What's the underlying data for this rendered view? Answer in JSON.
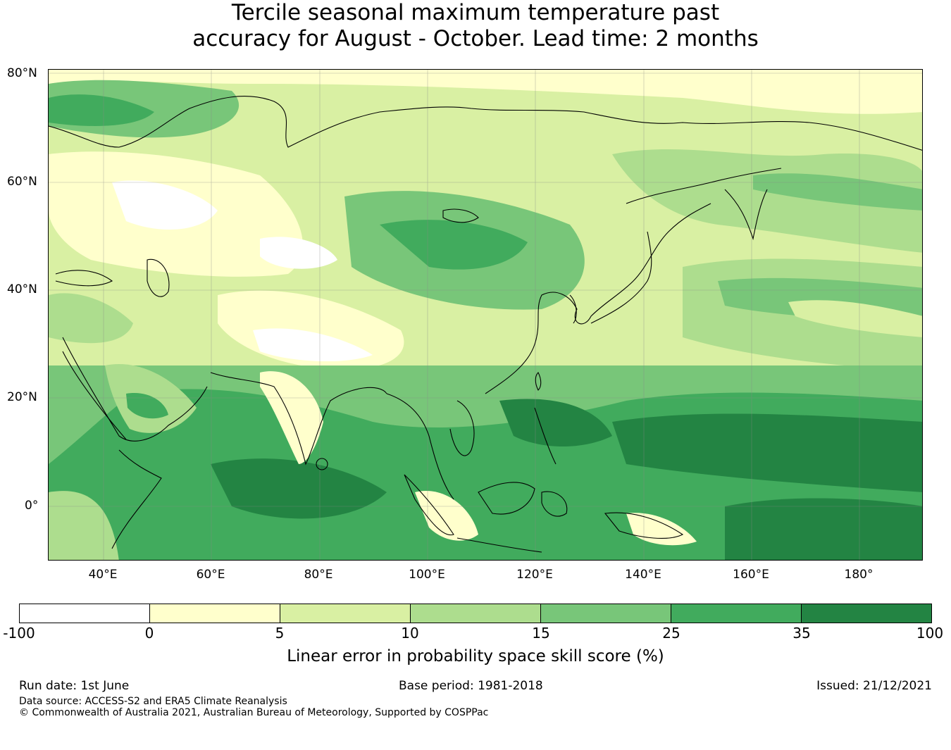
{
  "title": {
    "line1": "Tercile seasonal maximum temperature past",
    "line2": "accuracy for August - October. Lead time: 2 months"
  },
  "map": {
    "lat_labels": [
      "80°N",
      "60°N",
      "40°N",
      "20°N",
      "0°"
    ],
    "lon_labels": [
      "40°E",
      "60°E",
      "80°E",
      "100°E",
      "120°E",
      "140°E",
      "160°E",
      "180°"
    ]
  },
  "colorbar": {
    "ticks": [
      "-100",
      "0",
      "5",
      "10",
      "15",
      "25",
      "35",
      "100"
    ],
    "colors": [
      "#ffffff",
      "#ffffcc",
      "#d9f0a3",
      "#addd8e",
      "#78c679",
      "#41ab5d",
      "#238443"
    ],
    "label": "Linear error in probability space skill score (%)"
  },
  "footer": {
    "run_date": "Run date: 1st June",
    "base_period": "Base period: 1981-2018",
    "issued": "Issued: 21/12/2021",
    "data_source": "Data source: ACCESS-S2 and ERA5 Climate Reanalysis",
    "copyright": "© Commonwealth of Australia 2021, Australian Bureau of Meteorology, Supported by COSPPac"
  }
}
